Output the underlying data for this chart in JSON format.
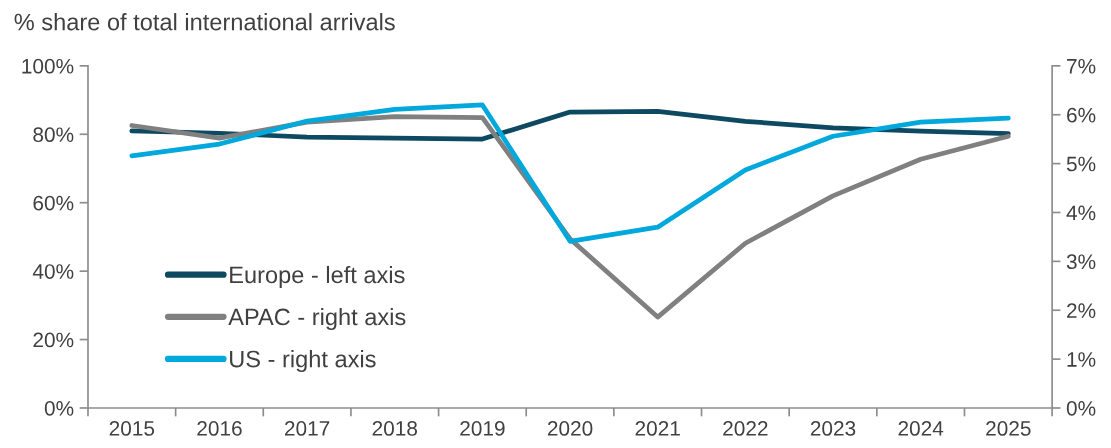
{
  "chart_data": {
    "type": "line",
    "ylabel": "% share of total international arrivals",
    "categories": [
      "2015",
      "2016",
      "2017",
      "2018",
      "2019",
      "2020",
      "2021",
      "2022",
      "2023",
      "2024",
      "2025"
    ],
    "series": [
      {
        "name": "Europe - left axis",
        "color": "#0d4a62",
        "values": [
          81.0,
          80.3,
          79.2,
          78.9,
          78.6,
          86.5,
          86.7,
          83.8,
          81.9,
          80.9,
          80.2
        ]
      },
      {
        "name": "APAC - right axis",
        "color": "#808080",
        "axis": "y2",
        "values": [
          5.78,
          5.52,
          5.85,
          5.96,
          5.94,
          3.46,
          1.86,
          3.37,
          4.34,
          5.09,
          5.56
        ]
      },
      {
        "name": "US - right axis",
        "color": "#00a8dc",
        "axis": "y2",
        "values": [
          5.16,
          5.4,
          5.87,
          6.11,
          6.2,
          3.41,
          3.7,
          4.87,
          5.56,
          5.85,
          5.93
        ]
      }
    ],
    "ylim": [
      0,
      100
    ],
    "yticks": [
      {
        "value": 0,
        "label": "0%"
      },
      {
        "value": 20,
        "label": "20%"
      },
      {
        "value": 40,
        "label": "40%"
      },
      {
        "value": 60,
        "label": "60%"
      },
      {
        "value": 80,
        "label": "80%"
      },
      {
        "value": 100,
        "label": "100%"
      }
    ],
    "y2lim": [
      0,
      7
    ],
    "y2ticks": [
      {
        "value": 0,
        "label": "0%"
      },
      {
        "value": 1,
        "label": "1%"
      },
      {
        "value": 2,
        "label": "2%"
      },
      {
        "value": 3,
        "label": "3%"
      },
      {
        "value": 4,
        "label": "4%"
      },
      {
        "value": 5,
        "label": "5%"
      },
      {
        "value": 6,
        "label": "6%"
      },
      {
        "value": 7,
        "label": "7%"
      }
    ],
    "legend": "lower left",
    "grid": false,
    "marker": "none",
    "line_style": "solid"
  }
}
